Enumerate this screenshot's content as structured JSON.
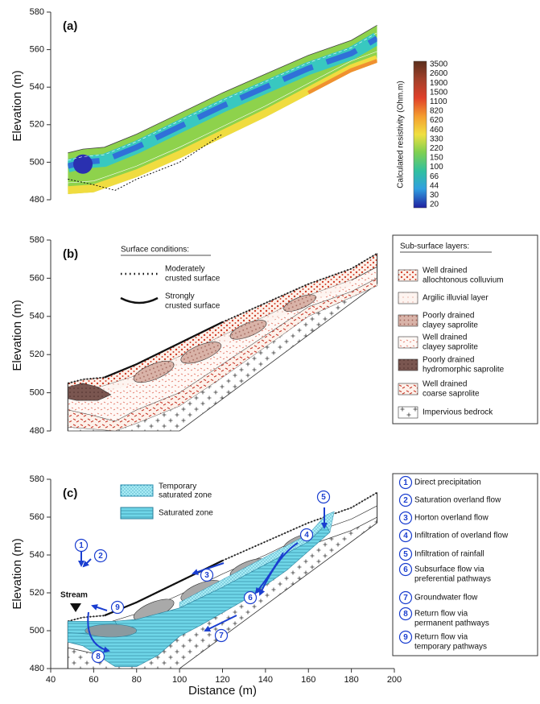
{
  "axis": {
    "y_label": "Elevation (m)",
    "x_label": "Distance (m)",
    "yticks": [
      480,
      500,
      520,
      540,
      560,
      580
    ],
    "xticks": [
      40,
      60,
      80,
      100,
      120,
      140,
      160,
      180,
      200
    ]
  },
  "panels": [
    {
      "label": "(a)",
      "colorbar": {
        "title": "Calculated resistivity (Ohm.m)",
        "labels": [
          3500,
          2600,
          1900,
          1500,
          1100,
          820,
          620,
          460,
          330,
          220,
          150,
          100,
          66,
          44,
          30,
          20
        ]
      }
    },
    {
      "label": "(b)",
      "surface_legend": {
        "title": "Surface conditions:",
        "items": [
          [
            "Moderately",
            "crusted surface"
          ],
          [
            "Strongly",
            "crusted surface"
          ]
        ]
      },
      "subsurface_legend": {
        "title": "Sub-surface layers:",
        "items": [
          [
            "Well drained",
            "allochtonous colluvium"
          ],
          [
            "Argilic illuvial layer"
          ],
          [
            "Poorly drained",
            "clayey saprolite"
          ],
          [
            "Well drained",
            "clayey saprolite"
          ],
          [
            "Poorly drained",
            "hydromorphic saprolite"
          ],
          [
            "Well drained",
            "coarse saprolite"
          ],
          [
            "Impervious bedrock"
          ]
        ]
      }
    },
    {
      "label": "(c)",
      "stream": "Stream",
      "zone_legend": [
        [
          "Temporary",
          "saturated zone"
        ],
        [
          "Saturated zone"
        ]
      ],
      "flow_legend": [
        {
          "number": "1",
          "lines": [
            "Direct precipitation"
          ]
        },
        {
          "number": "2",
          "lines": [
            "Saturation overland flow"
          ]
        },
        {
          "number": "3",
          "lines": [
            "Horton overland flow"
          ]
        },
        {
          "number": "4",
          "lines": [
            "Infiltration of overland flow"
          ]
        },
        {
          "number": "5",
          "lines": [
            "Infiltration of rainfall"
          ]
        },
        {
          "number": "6",
          "lines": [
            "Subsurface flow via",
            "preferential pathways"
          ]
        },
        {
          "number": "7",
          "lines": [
            "Groundwater flow"
          ]
        },
        {
          "number": "8",
          "lines": [
            "Return flow via",
            "permanent pathways"
          ]
        },
        {
          "number": "9",
          "lines": [
            "Return flow via",
            "temporary pathways"
          ]
        }
      ]
    }
  ]
}
